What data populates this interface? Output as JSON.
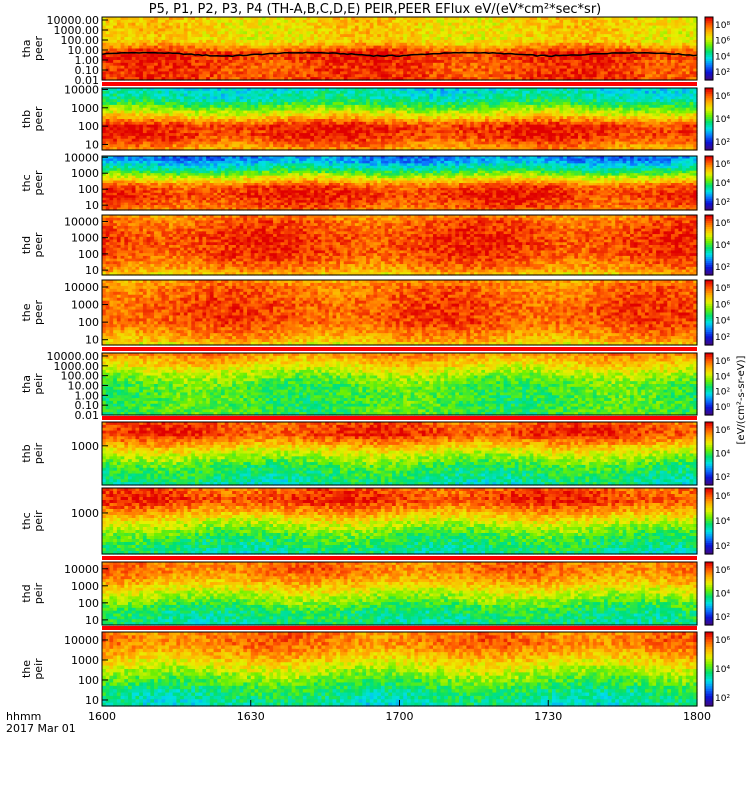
{
  "title": "P5, P1, P2, P3, P4 (TH-A,B,C,D,E) PEIR,PEER EFlux eV/(eV*cm²*sec*sr)",
  "time_axis": {
    "row1_label": "hhmm",
    "row2_label": "2017 Mar 01",
    "ticks": [
      "1600",
      "1630",
      "1700",
      "1730",
      "1800"
    ]
  },
  "colorbar_unit_label": "[eV/(cm²-s-sr-eV)]",
  "colors": {
    "ramp": [
      "#3a0a8c",
      "#0a14d8",
      "#0a78ff",
      "#00e0e8",
      "#00e070",
      "#70f000",
      "#e8f000",
      "#ffb000",
      "#ff5a00",
      "#e00000"
    ],
    "missing_bar_red": "#ff0000",
    "missing_bar_yellow": "#ffff00",
    "overlay_line": "#000000"
  },
  "chart_data": [
    {
      "type": "heatmap",
      "name": "tha_peer",
      "panel_label": [
        "tha",
        "peer"
      ],
      "yscale": "log",
      "ylim": [
        0.01,
        20000
      ],
      "yticks": [
        "10000.00",
        "1000.00",
        "100.00",
        "10.00",
        "1.00",
        "0.10",
        "0.01"
      ],
      "colorbar_ticks": [
        "10⁸",
        "10⁶",
        "10⁴",
        "10²"
      ],
      "profile": [
        [
          0.01,
          0.92
        ],
        [
          0.6,
          0.92
        ],
        [
          2,
          0.95
        ],
        [
          5,
          0.95
        ],
        [
          30,
          0.78
        ],
        [
          100,
          0.7
        ],
        [
          1000,
          0.72
        ],
        [
          10000,
          0.72
        ],
        [
          20000,
          0.72
        ]
      ],
      "overlay_line_level": 4
    },
    {
      "type": "heatmap",
      "name": "thb_peer",
      "panel_label": [
        "thb",
        "peer"
      ],
      "yscale": "log",
      "ylim": [
        5,
        12000
      ],
      "yticks": [
        "10000",
        "1000",
        "100",
        "10"
      ],
      "colorbar_ticks": [
        "10⁶",
        "10⁴",
        "10²"
      ],
      "profile": [
        [
          5,
          0.8
        ],
        [
          10,
          0.85
        ],
        [
          30,
          0.95
        ],
        [
          100,
          0.95
        ],
        [
          300,
          0.75
        ],
        [
          1000,
          0.55
        ],
        [
          3000,
          0.4
        ],
        [
          10000,
          0.35
        ],
        [
          12000,
          0.35
        ]
      ],
      "missing_bar_top": true
    },
    {
      "type": "heatmap",
      "name": "thc_peer",
      "panel_label": [
        "thc",
        "peer"
      ],
      "yscale": "log",
      "ylim": [
        5,
        12000
      ],
      "yticks": [
        "10000",
        "1000",
        "100",
        "10"
      ],
      "colorbar_ticks": [
        "10⁶",
        "10⁴",
        "10²"
      ],
      "profile": [
        [
          5,
          0.85
        ],
        [
          10,
          0.9
        ],
        [
          40,
          0.95
        ],
        [
          150,
          0.9
        ],
        [
          400,
          0.72
        ],
        [
          1500,
          0.45
        ],
        [
          5000,
          0.28
        ],
        [
          12000,
          0.22
        ]
      ]
    },
    {
      "type": "heatmap",
      "name": "thd_peer",
      "panel_label": [
        "thd",
        "peer"
      ],
      "yscale": "log",
      "ylim": [
        5,
        25000
      ],
      "yticks": [
        "10000",
        "1000",
        "100",
        "10"
      ],
      "colorbar_ticks": [
        "10⁶",
        "10⁴",
        "10²"
      ],
      "profile": [
        [
          5,
          0.7
        ],
        [
          10,
          0.82
        ],
        [
          100,
          0.92
        ],
        [
          1000,
          0.93
        ],
        [
          10000,
          0.88
        ],
        [
          25000,
          0.82
        ]
      ]
    },
    {
      "type": "heatmap",
      "name": "the_peer",
      "panel_label": [
        "the",
        "peer"
      ],
      "yscale": "log",
      "ylim": [
        5,
        25000
      ],
      "yticks": [
        "10000",
        "1000",
        "100",
        "10"
      ],
      "colorbar_ticks": [
        "10⁸",
        "10⁶",
        "10⁴",
        "10²"
      ],
      "profile": [
        [
          5,
          0.68
        ],
        [
          10,
          0.78
        ],
        [
          100,
          0.9
        ],
        [
          1000,
          0.9
        ],
        [
          10000,
          0.86
        ],
        [
          25000,
          0.8
        ]
      ]
    },
    {
      "type": "heatmap",
      "name": "tha_peir",
      "panel_label": [
        "tha",
        "peir"
      ],
      "yscale": "log",
      "ylim": [
        0.01,
        20000
      ],
      "yticks": [
        "10000.00",
        "1000.00",
        "100.00",
        "10.00",
        "1.00",
        "0.10",
        "0.01"
      ],
      "colorbar_ticks": [
        "10⁶",
        "10⁴",
        "10²",
        "10⁰"
      ],
      "profile": [
        [
          0.01,
          0.5
        ],
        [
          1,
          0.5
        ],
        [
          10,
          0.52
        ],
        [
          100,
          0.58
        ],
        [
          1000,
          0.7
        ],
        [
          10000,
          0.8
        ],
        [
          20000,
          0.85
        ]
      ],
      "missing_bar_top": true
    },
    {
      "type": "heatmap",
      "name": "thb_peir",
      "panel_label": [
        "thb",
        "peir"
      ],
      "yscale": "log",
      "ylim": [
        5,
        25000
      ],
      "yticks": [
        "1000"
      ],
      "colorbar_ticks": [
        "10⁶",
        "10⁴",
        "10²"
      ],
      "profile": [
        [
          5,
          0.4
        ],
        [
          50,
          0.48
        ],
        [
          300,
          0.62
        ],
        [
          1500,
          0.8
        ],
        [
          5000,
          0.94
        ],
        [
          25000,
          0.88
        ]
      ],
      "missing_bar_top": true
    },
    {
      "type": "heatmap",
      "name": "thc_peir",
      "panel_label": [
        "thc",
        "peir"
      ],
      "yscale": "log",
      "ylim": [
        5,
        25000
      ],
      "yticks": [
        "1000"
      ],
      "colorbar_ticks": [
        "10⁶",
        "10⁴",
        "10²"
      ],
      "profile": [
        [
          5,
          0.4
        ],
        [
          50,
          0.5
        ],
        [
          300,
          0.65
        ],
        [
          1500,
          0.82
        ],
        [
          5000,
          0.94
        ],
        [
          25000,
          0.88
        ]
      ]
    },
    {
      "type": "heatmap",
      "name": "thd_peir",
      "panel_label": [
        "thd",
        "peir"
      ],
      "yscale": "log",
      "ylim": [
        5,
        25000
      ],
      "yticks": [
        "10000",
        "1000",
        "100",
        "10"
      ],
      "colorbar_ticks": [
        "10⁶",
        "10⁴",
        "10²"
      ],
      "profile": [
        [
          5,
          0.42
        ],
        [
          30,
          0.45
        ],
        [
          300,
          0.62
        ],
        [
          1500,
          0.76
        ],
        [
          8000,
          0.86
        ],
        [
          25000,
          0.84
        ]
      ],
      "missing_bar_top": true,
      "missing_bar_split_at": "1726"
    },
    {
      "type": "heatmap",
      "name": "the_peir",
      "panel_label": [
        "the",
        "peir"
      ],
      "yscale": "log",
      "ylim": [
        5,
        25000
      ],
      "yticks": [
        "10000",
        "1000",
        "100",
        "10"
      ],
      "colorbar_ticks": [
        "10⁶",
        "10⁴",
        "10²"
      ],
      "profile": [
        [
          5,
          0.38
        ],
        [
          30,
          0.45
        ],
        [
          300,
          0.62
        ],
        [
          1500,
          0.76
        ],
        [
          8000,
          0.86
        ],
        [
          25000,
          0.84
        ]
      ],
      "missing_bar_top": true
    }
  ]
}
